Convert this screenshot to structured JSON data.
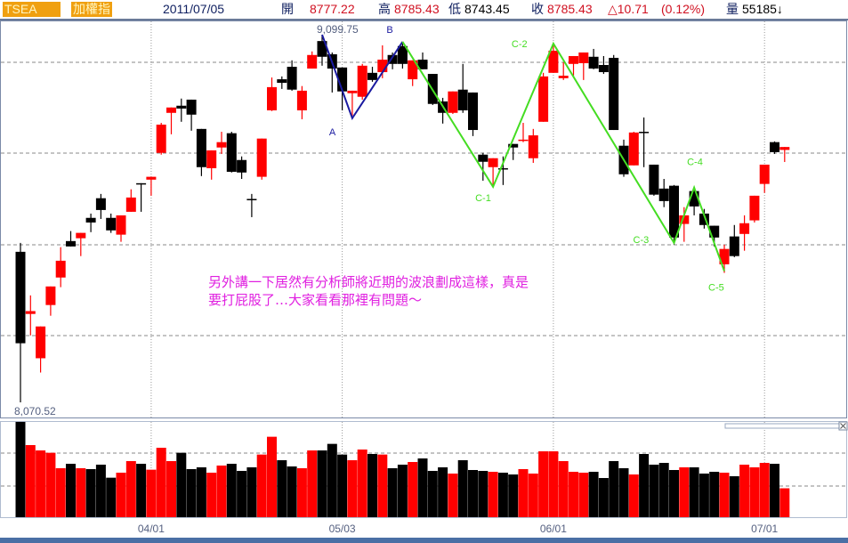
{
  "header": {
    "symbol": "TSEA",
    "name": "加權指",
    "date": "2011/07/05",
    "open_label": "開",
    "open": "8777.22",
    "high_label": "高",
    "high": "8785.43",
    "low_label": "低",
    "low": "8743.45",
    "close_label": "收",
    "close": "8785.43",
    "change": "△10.71",
    "change_pct": "(0.12%)",
    "volume_label": "量",
    "volume": "55185↓"
  },
  "annotation": {
    "line1": "另外講一下居然有分析師將近期的波浪劃成這樣，真是",
    "line2": "要打屁股了…大家看看那裡有問題～"
  },
  "colors": {
    "up": "#ff0000",
    "down": "#000000",
    "wave_ab": "#1a1aa0",
    "wave_c": "#44dd22",
    "note": "#e020e0",
    "accent": "#f0a010"
  },
  "chart_data": {
    "type": "candlestick",
    "price_max_label": "9,099.75",
    "price_min_label": "8,070.52",
    "ylim": [
      8070.52,
      9099.75
    ],
    "x_tick_labels": [
      {
        "label": "04/01",
        "at_candle": 14
      },
      {
        "label": "05/03",
        "at_candle": 33
      },
      {
        "label": "06/01",
        "at_candle": 54
      },
      {
        "label": "07/01",
        "at_candle": 75
      }
    ],
    "candles_ohlc": [
      [
        8492,
        8517,
        8070.52,
        8236
      ],
      [
        8318,
        8370,
        8258,
        8326
      ],
      [
        8194,
        8283,
        8154,
        8283
      ],
      [
        8343,
        8395,
        8313,
        8395
      ],
      [
        8420,
        8505,
        8393,
        8467
      ],
      [
        8522,
        8550,
        8507,
        8507
      ],
      [
        8530,
        8545,
        8480,
        8545
      ],
      [
        8587,
        8599,
        8547,
        8574
      ],
      [
        8642,
        8654,
        8584,
        8609
      ],
      [
        8587,
        8599,
        8545,
        8552
      ],
      [
        8540,
        8594,
        8520,
        8594
      ],
      [
        8604,
        8667,
        8604,
        8644
      ],
      [
        8684,
        8684,
        8604,
        8682
      ],
      [
        8694,
        8702,
        8649,
        8702
      ],
      [
        8769,
        8853,
        8764,
        8848
      ],
      [
        8881,
        8896,
        8821,
        8896
      ],
      [
        8901,
        8921,
        8856,
        8893
      ],
      [
        8918,
        8918,
        8831,
        8876
      ],
      [
        8836,
        8836,
        8704,
        8729
      ],
      [
        8726,
        8776,
        8694,
        8776
      ],
      [
        8784,
        8828,
        8766,
        8799
      ],
      [
        8824,
        8828,
        8714,
        8716
      ],
      [
        8749,
        8759,
        8696,
        8714
      ],
      [
        8640,
        8654,
        8589,
        8638
      ],
      [
        8702,
        8809,
        8694,
        8809
      ],
      [
        8888,
        8980,
        8886,
        8953
      ],
      [
        8975,
        8983,
        8948,
        8965
      ],
      [
        9010,
        9028,
        8943,
        8946
      ],
      [
        8888,
        8956,
        8863,
        8943
      ],
      [
        9005,
        9053,
        9005,
        9043
      ],
      [
        9082,
        9099.75,
        9013,
        9038
      ],
      [
        9045,
        9050,
        8938,
        9005
      ],
      [
        9008,
        9008,
        8888,
        8941
      ],
      [
        8936,
        8943,
        8873,
        8943
      ],
      [
        8926,
        9018,
        8918,
        9013
      ],
      [
        8993,
        9010,
        8968,
        8973
      ],
      [
        8995,
        9070,
        8978,
        9030
      ],
      [
        9043,
        9050,
        9003,
        9018
      ],
      [
        9068,
        9080,
        9005,
        9018
      ],
      [
        8975,
        9028,
        8956,
        9028
      ],
      [
        9030,
        9050,
        9003,
        9003
      ],
      [
        8990,
        8990,
        8903,
        8906
      ],
      [
        8913,
        8923,
        8851,
        8881
      ],
      [
        8881,
        8941,
        8878,
        8941
      ],
      [
        8946,
        9018,
        8881,
        8888
      ],
      [
        8938,
        8938,
        8816,
        8833
      ],
      [
        8764,
        8769,
        8691,
        8744
      ],
      [
        8729,
        8754,
        8679,
        8754
      ],
      [
        8726,
        8759,
        8679,
        8724
      ],
      [
        8794,
        8794,
        8749,
        8784
      ],
      [
        8804,
        8853,
        8799,
        8806
      ],
      [
        8754,
        8836,
        8741,
        8818
      ],
      [
        8856,
        8993,
        8856,
        8983
      ],
      [
        8993,
        9072,
        8993,
        9055
      ],
      [
        8978,
        9023,
        8973,
        8985
      ],
      [
        9018,
        9040,
        8985,
        9040
      ],
      [
        9020,
        9050,
        8973,
        9050
      ],
      [
        9038,
        9060,
        9003,
        9005
      ],
      [
        9015,
        9040,
        8990,
        8995
      ],
      [
        9035,
        9043,
        8833,
        8833
      ],
      [
        8789,
        8806,
        8702,
        8709
      ],
      [
        8734,
        8828,
        8734,
        8826
      ],
      [
        8828,
        8868,
        8729,
        8826
      ],
      [
        8736,
        8736,
        8649,
        8652
      ],
      [
        8669,
        8696,
        8617,
        8634
      ],
      [
        8677,
        8679,
        8512,
        8532
      ],
      [
        8570,
        8617,
        8520,
        8594
      ],
      [
        8662,
        8674,
        8594,
        8619
      ],
      [
        8599,
        8612,
        8557,
        8567
      ],
      [
        8565,
        8565,
        8507,
        8532
      ],
      [
        8457,
        8512,
        8433,
        8500
      ],
      [
        8535,
        8567,
        8477,
        8480
      ],
      [
        8542,
        8594,
        8495,
        8572
      ],
      [
        8580,
        8649,
        8574,
        8649
      ],
      [
        8682,
        8736,
        8657,
        8736
      ],
      [
        8799,
        8801,
        8766,
        8771
      ],
      [
        8777.22,
        8785.43,
        8743.45,
        8785.43
      ]
    ],
    "volume": [
      182000,
      137700,
      127500,
      123000,
      93500,
      102000,
      93500,
      91800,
      100300,
      75400,
      85000,
      107100,
      102000,
      90700,
      132600,
      107100,
      123000,
      91800,
      95200,
      85000,
      98600,
      102000,
      88400,
      95200,
      119600,
      153600,
      108800,
      96900,
      93500,
      127500,
      127500,
      140000,
      119600,
      108800,
      129200,
      120700,
      119600,
      93500,
      100300,
      105400,
      112200,
      88400,
      95200,
      83300,
      108800,
      90100,
      88400,
      86700,
      85000,
      81600,
      91800,
      83300,
      125800,
      125800,
      107100,
      86700,
      85000,
      86700,
      74800,
      107100,
      93500,
      81600,
      120700,
      100300,
      103700,
      90100,
      95200,
      95200,
      83300,
      86700,
      85000,
      78200,
      100300,
      95200,
      103700,
      102000,
      55185
    ],
    "wave_ab": [
      {
        "label": "",
        "candle": 31,
        "price": 9099.75
      },
      {
        "label": "A",
        "candle": 34,
        "price": 8866
      },
      {
        "label": "B",
        "candle": 39,
        "price": 9080
      }
    ],
    "wave_c": [
      {
        "label": "",
        "candle": 39,
        "price": 9080
      },
      {
        "label": "C-1",
        "candle": 48,
        "price": 8674
      },
      {
        "label": "C-2",
        "candle": 54,
        "price": 9075
      },
      {
        "label": "C-3",
        "candle": 66,
        "price": 8517
      },
      {
        "label": "C-4",
        "candle": 68,
        "price": 8672
      },
      {
        "label": "C-5",
        "candle": 71,
        "price": 8438
      }
    ]
  }
}
